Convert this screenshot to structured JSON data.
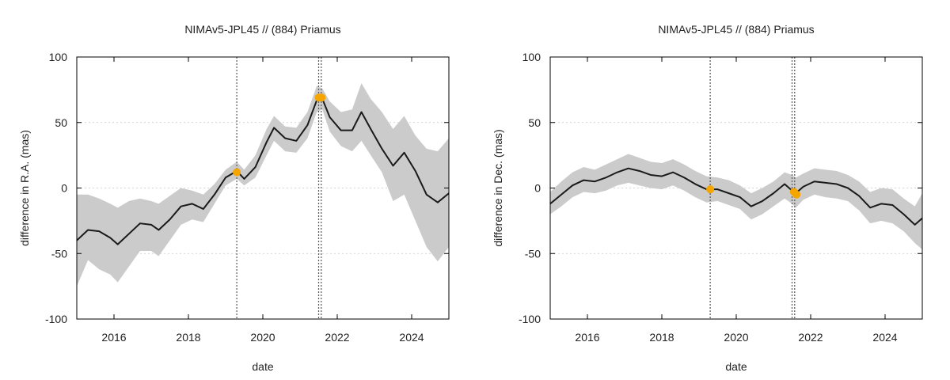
{
  "chart_data": [
    {
      "type": "area",
      "title": "NIMAv5-JPL45 // (884) Priamus",
      "xlabel": "date",
      "ylabel": "difference in R.A. (mas)",
      "xlim": [
        2015.0,
        2025.0
      ],
      "ylim": [
        -100,
        100
      ],
      "x_ticks": [
        2016,
        2018,
        2020,
        2022,
        2024
      ],
      "x_tick_labels": [
        "2016",
        "2018",
        "2020",
        "2022",
        "2024"
      ],
      "y_ticks": [
        -100,
        -50,
        0,
        50,
        100
      ],
      "y_tick_labels": [
        "-100",
        "-50",
        "0",
        "50",
        "100"
      ],
      "grid": "y-dotted",
      "event_lines_x": [
        2019.3,
        2021.5,
        2021.57
      ],
      "series_color": "#1a1a1a",
      "band_color": "#cbcbcb",
      "marker_color": "#f5a500",
      "x": [
        2015.0,
        2015.3,
        2015.6,
        2015.9,
        2016.1,
        2016.4,
        2016.7,
        2017.0,
        2017.2,
        2017.5,
        2017.8,
        2018.1,
        2018.4,
        2018.7,
        2019.0,
        2019.3,
        2019.5,
        2019.8,
        2020.1,
        2020.3,
        2020.6,
        2020.9,
        2021.2,
        2021.45,
        2021.6,
        2021.8,
        2022.1,
        2022.4,
        2022.65,
        2022.9,
        2023.2,
        2023.5,
        2023.8,
        2024.1,
        2024.4,
        2024.7,
        2025.0
      ],
      "y": [
        -40,
        -32,
        -33,
        -38,
        -43,
        -35,
        -27,
        -28,
        -32,
        -24,
        -14,
        -12,
        -16,
        -5,
        8,
        13,
        7,
        16,
        35,
        46,
        38,
        36,
        48,
        67,
        68,
        54,
        44,
        44,
        58,
        45,
        30,
        17,
        27,
        13,
        -5,
        -11,
        -4
      ],
      "band_upper": [
        -5,
        -5,
        -8,
        -12,
        -15,
        -10,
        -8,
        -10,
        -12,
        -6,
        0,
        -2,
        -5,
        3,
        14,
        20,
        14,
        25,
        45,
        55,
        47,
        46,
        58,
        78,
        76,
        66,
        58,
        60,
        80,
        68,
        58,
        45,
        55,
        40,
        30,
        28,
        38
      ],
      "band_lower": [
        -75,
        -55,
        -62,
        -66,
        -72,
        -60,
        -48,
        -48,
        -52,
        -40,
        -28,
        -24,
        -26,
        -12,
        2,
        7,
        2,
        8,
        25,
        36,
        28,
        27,
        38,
        58,
        60,
        43,
        32,
        28,
        36,
        25,
        12,
        -10,
        -5,
        -25,
        -45,
        -56,
        -45
      ],
      "markers": [
        {
          "x": 2019.3,
          "y": 12
        },
        {
          "x": 2021.5,
          "y": 69
        },
        {
          "x": 2021.58,
          "y": 69
        }
      ]
    },
    {
      "type": "area",
      "title": "NIMAv5-JPL45 // (884) Priamus",
      "xlabel": "date",
      "ylabel": "difference in Dec. (mas)",
      "xlim": [
        2015.0,
        2025.0
      ],
      "ylim": [
        -100,
        100
      ],
      "x_ticks": [
        2016,
        2018,
        2020,
        2022,
        2024
      ],
      "x_tick_labels": [
        "2016",
        "2018",
        "2020",
        "2022",
        "2024"
      ],
      "y_ticks": [
        -100,
        -50,
        0,
        50,
        100
      ],
      "y_tick_labels": [
        "-100",
        "-50",
        "0",
        "50",
        "100"
      ],
      "grid": "y-dotted",
      "event_lines_x": [
        2019.3,
        2021.5,
        2021.57
      ],
      "series_color": "#1a1a1a",
      "band_color": "#cbcbcb",
      "marker_color": "#f5a500",
      "x": [
        2015.0,
        2015.3,
        2015.6,
        2015.9,
        2016.2,
        2016.5,
        2016.8,
        2017.1,
        2017.4,
        2017.7,
        2018.0,
        2018.3,
        2018.6,
        2018.9,
        2019.2,
        2019.5,
        2019.8,
        2020.1,
        2020.4,
        2020.7,
        2021.0,
        2021.3,
        2021.5,
        2021.6,
        2021.8,
        2022.1,
        2022.4,
        2022.7,
        2023.0,
        2023.3,
        2023.6,
        2023.9,
        2024.2,
        2024.5,
        2024.8,
        2025.0
      ],
      "y": [
        -12,
        -5,
        2,
        6,
        5,
        8,
        12,
        15,
        13,
        10,
        9,
        12,
        8,
        3,
        -1,
        -1,
        -4,
        -7,
        -14,
        -10,
        -4,
        3,
        -2,
        -4,
        1,
        5,
        4,
        3,
        0,
        -6,
        -15,
        -12,
        -13,
        -20,
        -28,
        -23
      ],
      "band_upper": [
        -3,
        5,
        12,
        16,
        14,
        18,
        22,
        26,
        23,
        20,
        19,
        22,
        18,
        13,
        9,
        8,
        6,
        2,
        -4,
        0,
        5,
        12,
        10,
        8,
        11,
        15,
        14,
        13,
        10,
        5,
        -3,
        0,
        -1,
        -8,
        -14,
        -4
      ],
      "band_lower": [
        -20,
        -14,
        -7,
        -3,
        -4,
        -2,
        2,
        4,
        2,
        0,
        -1,
        2,
        -2,
        -7,
        -11,
        -10,
        -13,
        -16,
        -24,
        -20,
        -14,
        -8,
        -12,
        -15,
        -9,
        -5,
        -7,
        -8,
        -10,
        -17,
        -27,
        -25,
        -27,
        -33,
        -42,
        -47
      ],
      "markers": [
        {
          "x": 2019.3,
          "y": -1
        },
        {
          "x": 2021.55,
          "y": -3
        },
        {
          "x": 2021.62,
          "y": -5
        }
      ]
    }
  ]
}
